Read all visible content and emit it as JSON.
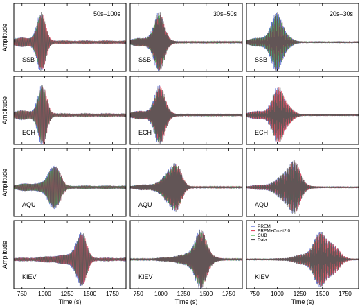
{
  "chart_data": {
    "type": "line",
    "layout": {
      "rows": 4,
      "cols": 3
    },
    "stations": [
      "SSB",
      "ECH",
      "AQU",
      "KIEV"
    ],
    "bands": [
      "50s–100s",
      "30s–50s",
      "20s–30s"
    ],
    "ylabel": "Amplitude",
    "xlabel": "Time (s)",
    "xlim": [
      660,
      1900
    ],
    "xticks": [
      750,
      1000,
      1250,
      1500,
      1750
    ],
    "ylim": [
      -1,
      1
    ],
    "grid": false,
    "legend": {
      "placement": "top-left",
      "panel": {
        "row": 3,
        "col": 2
      },
      "entries": [
        {
          "name": "PREM",
          "color": "#4a5fd0"
        },
        {
          "name": "PREM+Crust2.0",
          "color": "#e04a62"
        },
        {
          "name": "CUB",
          "color": "#3fb54a"
        },
        {
          "name": "Data",
          "color": "#555555"
        }
      ]
    },
    "series": [
      {
        "name": "PREM",
        "color": "#4a5fd0"
      },
      {
        "name": "PREM+Crust2.0",
        "color": "#e04a62"
      },
      {
        "name": "CUB",
        "color": "#3fb54a"
      },
      {
        "name": "Data",
        "color": "#555555"
      }
    ],
    "panels": [
      {
        "row": 0,
        "col": 0,
        "station": "SSB",
        "band": "50s–100s",
        "period": 13,
        "center": 960,
        "width": 70
      },
      {
        "row": 0,
        "col": 1,
        "station": "SSB",
        "band": "30s–50s",
        "period": 7,
        "center": 980,
        "width": 90
      },
      {
        "row": 0,
        "col": 2,
        "station": "SSB",
        "band": "20s–30s",
        "period": 4.5,
        "center": 1010,
        "width": 110
      },
      {
        "row": 1,
        "col": 0,
        "station": "ECH",
        "period": 13,
        "center": 975,
        "width": 70
      },
      {
        "row": 1,
        "col": 1,
        "station": "ECH",
        "period": 7,
        "center": 990,
        "width": 90
      },
      {
        "row": 1,
        "col": 2,
        "station": "ECH",
        "period": 4.5,
        "center": 1030,
        "width": 110
      },
      {
        "row": 2,
        "col": 0,
        "station": "AQU",
        "period": 13,
        "center": 1110,
        "width": 75
      },
      {
        "row": 2,
        "col": 1,
        "station": "AQU",
        "period": 7,
        "center": 1140,
        "width": 100
      },
      {
        "row": 2,
        "col": 2,
        "station": "AQU",
        "period": 4.5,
        "center": 1160,
        "width": 120
      },
      {
        "row": 3,
        "col": 0,
        "station": "KIEV",
        "period": 13,
        "center": 1400,
        "width": 80
      },
      {
        "row": 3,
        "col": 1,
        "station": "KIEV",
        "period": 7,
        "center": 1440,
        "width": 110
      },
      {
        "row": 3,
        "col": 2,
        "station": "KIEV",
        "period": 4.5,
        "center": 1520,
        "width": 150
      }
    ]
  }
}
